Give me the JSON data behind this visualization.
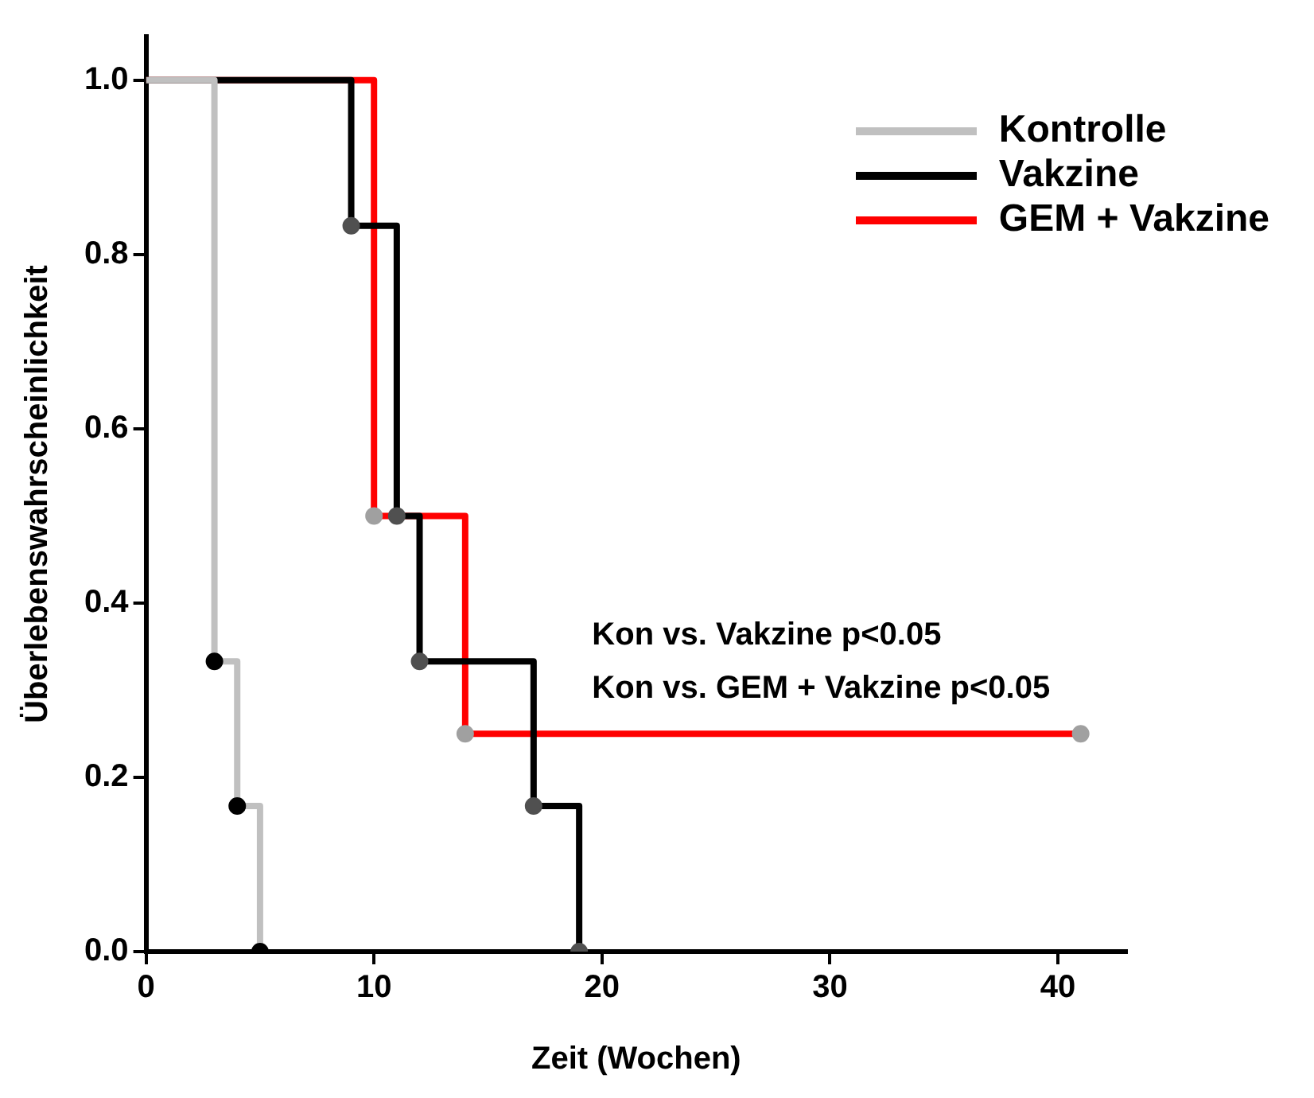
{
  "chart_data": {
    "type": "step",
    "xlabel": "Zeit (Wochen)",
    "ylabel": "Überlebenswahrscheinlichkeit",
    "xlim": [
      0,
      43
    ],
    "xticks": [
      0,
      10,
      20,
      30,
      40
    ],
    "ylim": [
      0,
      1.05
    ],
    "yticks": [
      {
        "value": 0,
        "label": "0.0"
      },
      {
        "value": 0.2,
        "label": "0.2"
      },
      {
        "value": 0.4,
        "label": "0.4"
      },
      {
        "value": 0.6,
        "label": "0.6"
      },
      {
        "value": 0.8,
        "label": "0.8"
      },
      {
        "value": 1,
        "label": "1.0"
      }
    ],
    "grid": false,
    "legend": "top right",
    "annotations": [
      "Kon vs. Vakzine p<0.05",
      "Kon vs. GEM + Vakzine p<0.05"
    ],
    "series": [
      {
        "name": "Kontrolle",
        "color": "#c0c0c0",
        "x": [
          0,
          3,
          4,
          5
        ],
        "values": [
          1,
          0.333,
          0.167,
          0
        ]
      },
      {
        "name": "Vakzine",
        "color": "#000000",
        "x": [
          0,
          9,
          11,
          12,
          17,
          19
        ],
        "values": [
          1,
          0.833,
          0.5,
          0.333,
          0.167,
          0
        ]
      },
      {
        "name": "GEM + Vakzine",
        "color": "#ff0000",
        "x": [
          0,
          10,
          14,
          41
        ],
        "values": [
          1,
          0.5,
          0.25,
          0.25
        ]
      },
      {
        "type": "scatter",
        "marker": "circle",
        "color": "#000000",
        "x": [
          3,
          4,
          5
        ],
        "values": [
          0.333,
          0.167,
          0
        ]
      },
      {
        "type": "scatter",
        "marker": "circle",
        "color": "#505050",
        "x": [
          9,
          11,
          12,
          17,
          19
        ],
        "values": [
          0.833,
          0.5,
          0.333,
          0.167,
          0
        ]
      },
      {
        "type": "scatter",
        "marker": "circle",
        "color": "#a0a0a0",
        "x": [
          10,
          14,
          41
        ],
        "values": [
          0.5,
          0.25,
          0.25
        ]
      }
    ]
  }
}
